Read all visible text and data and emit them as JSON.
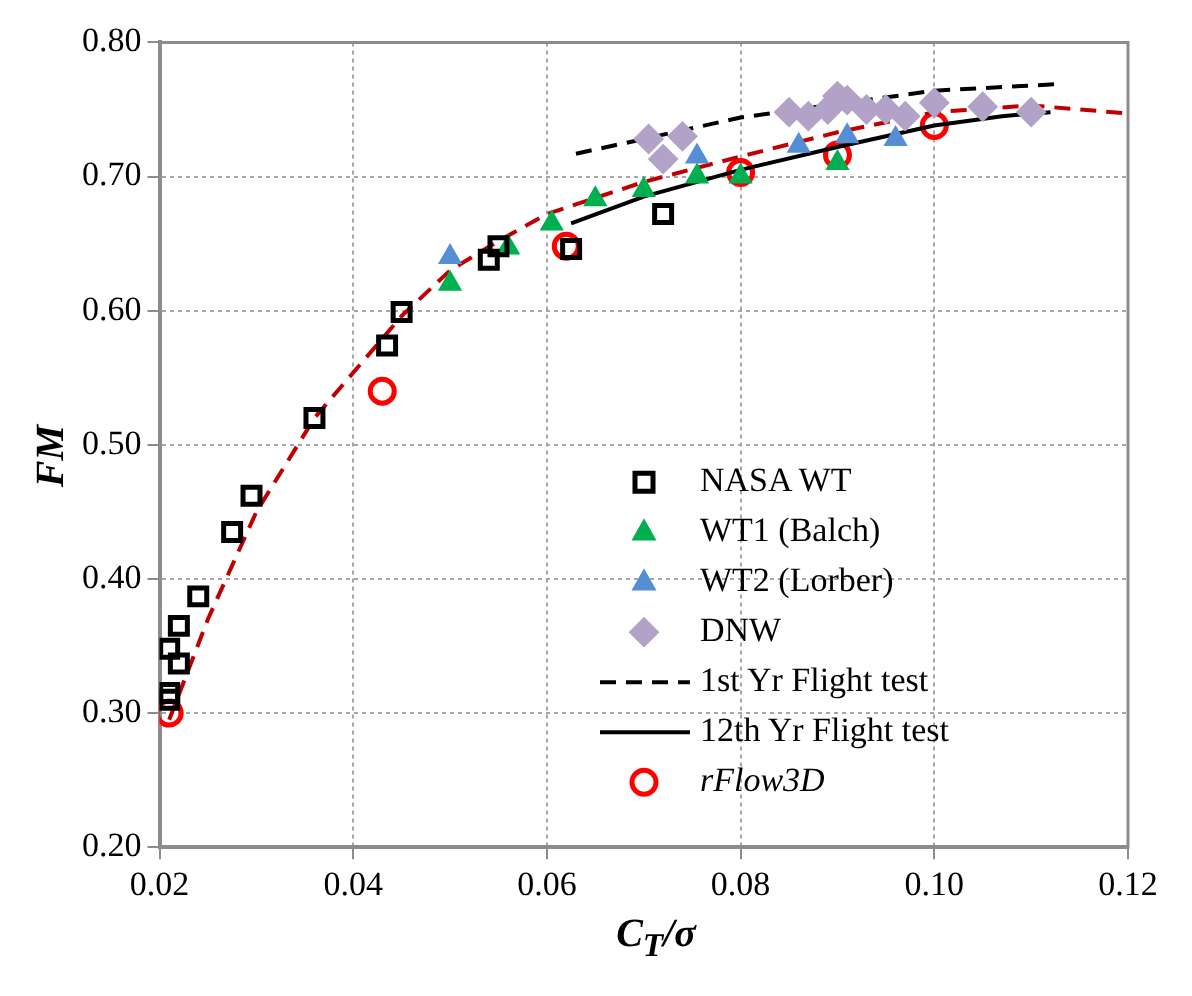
{
  "chart_data": {
    "type": "scatter",
    "xlabel": "C$_{T}$/σ",
    "ylabel": "FM",
    "xlim": [
      0.02,
      0.12
    ],
    "xticks": [
      {
        "value": 0.02,
        "label": "0.02"
      },
      {
        "value": 0.04,
        "label": "0.04"
      },
      {
        "value": 0.06,
        "label": "0.06"
      },
      {
        "value": 0.08,
        "label": "0.08"
      },
      {
        "value": 0.1,
        "label": "0.10"
      },
      {
        "value": 0.12,
        "label": "0.12"
      }
    ],
    "ylim": [
      0.2,
      0.8
    ],
    "yticks": [
      {
        "value": 0.2,
        "label": "0.20"
      },
      {
        "value": 0.3,
        "label": "0.30"
      },
      {
        "value": 0.4,
        "label": "0.40"
      },
      {
        "value": 0.5,
        "label": "0.50"
      },
      {
        "value": 0.6,
        "label": "0.60"
      },
      {
        "value": 0.7,
        "label": "0.70"
      },
      {
        "value": 0.8,
        "label": "0.80"
      }
    ],
    "grid": true,
    "legend": "bottom right",
    "series": [
      {
        "name": "NASA WT",
        "type": "scatter",
        "marker": "square",
        "color": "#000000",
        "x": [
          0.021,
          0.021,
          0.021,
          0.022,
          0.022,
          0.024,
          0.0275,
          0.0295,
          0.036,
          0.0435,
          0.045,
          0.054,
          0.055,
          0.0625,
          0.072
        ],
        "values": [
          0.31,
          0.315,
          0.348,
          0.365,
          0.337,
          0.387,
          0.435,
          0.462,
          0.52,
          0.574,
          0.599,
          0.638,
          0.648,
          0.646,
          0.672
        ]
      },
      {
        "name": "WT1 (Balch)",
        "type": "scatter",
        "marker": "triangle",
        "color": "#00b050",
        "x": [
          0.05,
          0.056,
          0.0605,
          0.065,
          0.07,
          0.0755,
          0.08,
          0.09
        ],
        "values": [
          0.62,
          0.647,
          0.665,
          0.683,
          0.69,
          0.7,
          0.7,
          0.71
        ]
      },
      {
        "name": "WT2 (Lorber)",
        "type": "scatter",
        "marker": "triangle",
        "color": "#558ed5",
        "x": [
          0.05,
          0.0755,
          0.086,
          0.091,
          0.096
        ],
        "values": [
          0.64,
          0.715,
          0.723,
          0.73,
          0.728
        ]
      },
      {
        "name": "DNW",
        "type": "scatter",
        "marker": "diamond",
        "color": "#b3a2c7",
        "x": [
          0.0705,
          0.072,
          0.074,
          0.085,
          0.087,
          0.089,
          0.09,
          0.091,
          0.093,
          0.095,
          0.097,
          0.1,
          0.105,
          0.11
        ],
        "values": [
          0.728,
          0.713,
          0.73,
          0.748,
          0.745,
          0.75,
          0.76,
          0.757,
          0.75,
          0.75,
          0.745,
          0.755,
          0.752,
          0.748
        ]
      },
      {
        "name": "1st Yr Flight test",
        "type": "line",
        "marker": "none",
        "line_style": "dashed",
        "color": "#000000",
        "x": [
          0.063,
          0.07,
          0.08,
          0.1,
          0.113
        ],
        "values": [
          0.717,
          0.728,
          0.744,
          0.764,
          0.769
        ]
      },
      {
        "name": "12th Yr Flight test",
        "type": "line",
        "marker": "none",
        "line_style": "solid",
        "color": "#000000",
        "x": [
          0.0625,
          0.07,
          0.08,
          0.09,
          0.1,
          0.107,
          0.112
        ],
        "values": [
          0.665,
          0.685,
          0.705,
          0.722,
          0.738,
          0.745,
          0.748
        ]
      },
      {
        "type": "line",
        "marker": "none",
        "line_style": "dashed",
        "color": "#c00000",
        "x": [
          0.021,
          0.025,
          0.03,
          0.036,
          0.045,
          0.05,
          0.055,
          0.06,
          0.07,
          0.08,
          0.09,
          0.1,
          0.11,
          0.12
        ],
        "values": [
          0.295,
          0.37,
          0.45,
          0.52,
          0.596,
          0.63,
          0.652,
          0.672,
          0.696,
          0.715,
          0.733,
          0.748,
          0.753,
          0.747
        ]
      },
      {
        "name": "rFlow3D",
        "type": "scatter",
        "marker": "circle",
        "color": "#ff0000",
        "x": [
          0.021,
          0.043,
          0.062,
          0.08,
          0.09,
          0.1
        ],
        "values": [
          0.3,
          0.54,
          0.648,
          0.703,
          0.716,
          0.738
        ]
      }
    ]
  }
}
